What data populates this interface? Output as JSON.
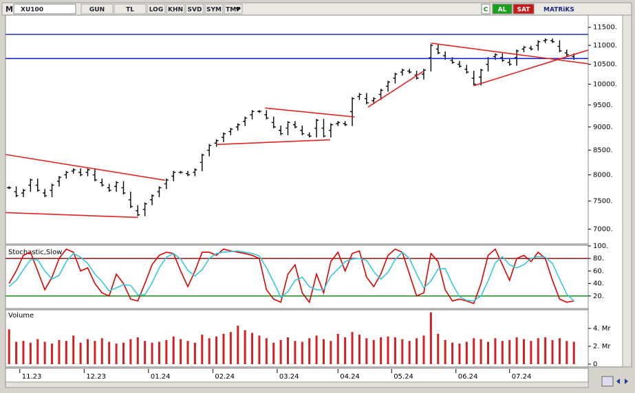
{
  "toolbar": {
    "logo": "M",
    "symbol": "XU100",
    "buttons": [
      "GUN",
      "TL",
      "LOG",
      "KHN",
      "SVD",
      "SYM",
      "TMP"
    ],
    "right": [
      "C",
      "AL",
      "SAT"
    ],
    "brand": "MATRiKS"
  },
  "chart_data": [
    {
      "type": "price",
      "log": true,
      "color": "#000000",
      "xlim": [
        -0.5,
        81
      ],
      "ylim": [
        6750,
        11850
      ],
      "yticks": [
        {
          "value": 7000,
          "label": "7000."
        },
        {
          "value": 7500,
          "label": "7500."
        },
        {
          "value": 8000,
          "label": "8000."
        },
        {
          "value": 8500,
          "label": "8500."
        },
        {
          "value": 9000,
          "label": "9000."
        },
        {
          "value": 9500,
          "label": "9500."
        },
        {
          "value": 10000,
          "label": "10000."
        },
        {
          "value": 10500,
          "label": "10500."
        },
        {
          "value": 11000,
          "label": "11000."
        },
        {
          "value": 11500,
          "label": "11500."
        }
      ],
      "values": [
        7750,
        7600,
        7700,
        7900,
        7700,
        7600,
        7800,
        7950,
        8050,
        8100,
        8000,
        8100,
        7900,
        7800,
        7700,
        7850,
        7650,
        7400,
        7250,
        7450,
        7600,
        7750,
        7900,
        8050,
        8050,
        8000,
        8100,
        8400,
        8600,
        8700,
        8850,
        8950,
        9050,
        9200,
        9350,
        9350,
        9200,
        9000,
        8850,
        9100,
        9000,
        8850,
        8800,
        9150,
        8800,
        9050,
        9100,
        9050,
        9650,
        9750,
        9550,
        9650,
        9850,
        10050,
        10250,
        10350,
        10300,
        10150,
        10350,
        11000,
        10800,
        10650,
        10550,
        10450,
        10300,
        10000,
        10350,
        10650,
        10750,
        10600,
        10500,
        10850,
        10950,
        10900,
        11100,
        11150,
        11100,
        10850,
        10750,
        10650
      ],
      "hlines": [
        11300,
        10650
      ],
      "hline_color": "#1f2fc8",
      "trendline_color": "#e02424",
      "trendlines": [
        {
          "x": [
            -0.5,
            21.8
          ],
          "y": [
            8410,
            7895
          ]
        },
        {
          "x": [
            -0.5,
            18
          ],
          "y": [
            7290,
            7204
          ]
        },
        {
          "x": [
            29,
            44.9
          ],
          "y": [
            8620,
            8720
          ]
        },
        {
          "x": [
            35.8,
            48.3
          ],
          "y": [
            9430,
            9225
          ]
        },
        {
          "x": [
            50.2,
            57.9
          ],
          "y": [
            9450,
            10315
          ]
        },
        {
          "x": [
            59,
            81
          ],
          "y": [
            11060,
            10513
          ]
        },
        {
          "x": [
            65,
            81
          ],
          "y": [
            9960,
            10875
          ]
        }
      ]
    },
    {
      "type": "line",
      "title": "Stochastic,Slow",
      "xlim": [
        -0.5,
        81
      ],
      "ylim": [
        0,
        100
      ],
      "yticks": [
        {
          "value": 20,
          "label": "20."
        },
        {
          "value": 40,
          "label": "40."
        },
        {
          "value": 60,
          "label": "60."
        },
        {
          "value": 80,
          "label": "80."
        },
        {
          "value": 100,
          "label": "100."
        }
      ],
      "levels": [
        80,
        20
      ],
      "level_colors": [
        "#8b0000",
        "#008000"
      ],
      "series": [
        {
          "color": "#e00000",
          "values": [
            40,
            60,
            85,
            90,
            60,
            30,
            50,
            80,
            95,
            90,
            60,
            65,
            40,
            25,
            20,
            55,
            40,
            15,
            12,
            40,
            70,
            85,
            90,
            88,
            60,
            35,
            60,
            90,
            90,
            85,
            95,
            92,
            90,
            88,
            85,
            80,
            30,
            15,
            10,
            55,
            70,
            25,
            10,
            55,
            25,
            75,
            90,
            60,
            88,
            92,
            50,
            35,
            55,
            85,
            95,
            90,
            55,
            20,
            25,
            88,
            75,
            30,
            12,
            15,
            12,
            8,
            40,
            85,
            95,
            70,
            45,
            80,
            85,
            75,
            90,
            80,
            45,
            15,
            10,
            12
          ]
        },
        {
          "color": "#33c8dc",
          "values": [
            35,
            45,
            62,
            78,
            78,
            60,
            47,
            53,
            75,
            88,
            82,
            72,
            55,
            43,
            28,
            33,
            38,
            37,
            22,
            22,
            41,
            65,
            82,
            88,
            79,
            61,
            52,
            62,
            80,
            88,
            90,
            91,
            92,
            90,
            88,
            84,
            65,
            42,
            18,
            27,
            45,
            50,
            35,
            30,
            30,
            52,
            63,
            75,
            79,
            80,
            77,
            59,
            47,
            58,
            78,
            90,
            80,
            55,
            33,
            44,
            63,
            64,
            39,
            19,
            13,
            12,
            20,
            44,
            73,
            83,
            70,
            65,
            70,
            80,
            83,
            82,
            72,
            47,
            23,
            12
          ]
        }
      ]
    },
    {
      "type": "bar",
      "title": "Volume",
      "color": "#d42020",
      "xlim": [
        -0.5,
        81
      ],
      "ylim": [
        0,
        6
      ],
      "yticks": [
        {
          "value": 0,
          "label": "0"
        },
        {
          "value": 2,
          "label": "2. Mr"
        },
        {
          "value": 4,
          "label": "4. Mr"
        }
      ],
      "xticks": [
        {
          "value": 1.5,
          "label": "11.23"
        },
        {
          "value": 10.5,
          "label": "12.23"
        },
        {
          "value": 19.5,
          "label": "01.24"
        },
        {
          "value": 28.5,
          "label": "02.24"
        },
        {
          "value": 37.5,
          "label": "03.24"
        },
        {
          "value": 46,
          "label": "04.24"
        },
        {
          "value": 53.5,
          "label": "05.24"
        },
        {
          "value": 62.5,
          "label": "06.24"
        },
        {
          "value": 70,
          "label": "07.24"
        }
      ],
      "values": [
        3.9,
        2.5,
        2.6,
        2.4,
        2.8,
        2.5,
        2.3,
        2.7,
        2.6,
        3.2,
        2.4,
        2.8,
        2.6,
        2.9,
        2.5,
        2.3,
        2.4,
        2.8,
        3.0,
        2.6,
        2.4,
        2.5,
        2.7,
        3.1,
        2.8,
        2.6,
        2.4,
        3.3,
        2.9,
        3.1,
        3.4,
        3.6,
        4.3,
        3.8,
        3.5,
        3.2,
        2.9,
        2.4,
        2.7,
        3.0,
        2.6,
        2.5,
        2.9,
        3.2,
        2.8,
        2.6,
        3.4,
        3.0,
        3.6,
        3.3,
        2.9,
        2.7,
        3.0,
        3.1,
        3.0,
        2.8,
        2.6,
        2.9,
        3.2,
        5.8,
        3.4,
        2.7,
        2.4,
        2.3,
        2.5,
        2.9,
        2.8,
        2.5,
        2.9,
        2.6,
        2.7,
        3.0,
        2.8,
        2.6,
        2.9,
        3.0,
        2.7,
        2.9,
        2.6,
        2.5
      ]
    }
  ]
}
